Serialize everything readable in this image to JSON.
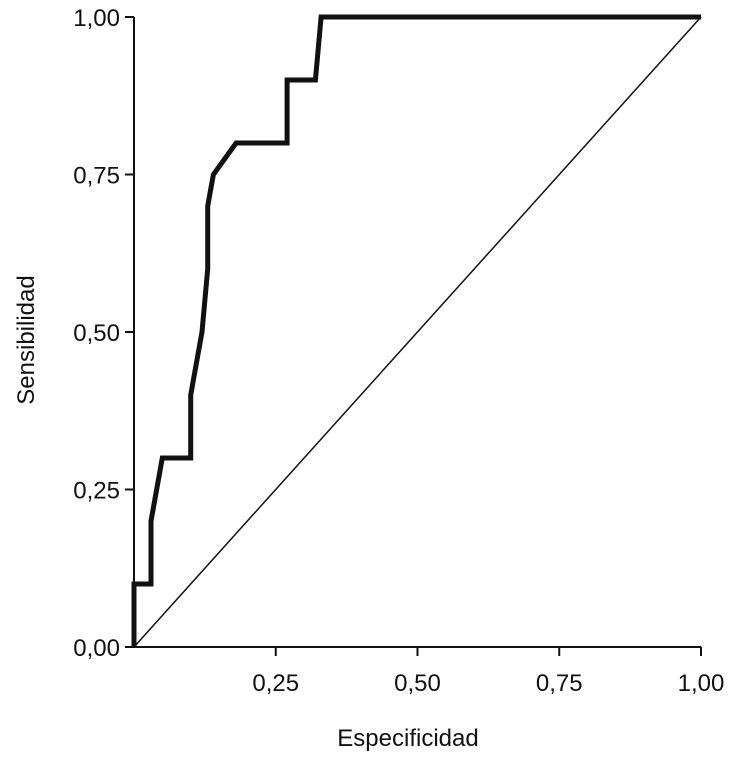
{
  "chart_data": {
    "type": "line",
    "title": "",
    "xlabel": "Especificidad",
    "ylabel": "Sensibilidad",
    "xlim": [
      0,
      1
    ],
    "ylim": [
      0,
      1
    ],
    "grid": false,
    "xticks": [
      {
        "value": 0.25,
        "label": "0,25"
      },
      {
        "value": 0.5,
        "label": "0,50"
      },
      {
        "value": 0.75,
        "label": "0,75"
      },
      {
        "value": 1.0,
        "label": "1,00"
      }
    ],
    "yticks": [
      {
        "value": 0.0,
        "label": "0,00"
      },
      {
        "value": 0.25,
        "label": "0,25"
      },
      {
        "value": 0.5,
        "label": "0,50"
      },
      {
        "value": 0.75,
        "label": "0,75"
      },
      {
        "value": 1.0,
        "label": "1,00"
      }
    ],
    "series": [
      {
        "style": "thick",
        "color": "#111111",
        "x": [
          0.0,
          0.0,
          0.03,
          0.03,
          0.05,
          0.1,
          0.1,
          0.12,
          0.12,
          0.13,
          0.13,
          0.14,
          0.18,
          0.27,
          0.27,
          0.32,
          0.33,
          1.0
        ],
        "y": [
          0.0,
          0.1,
          0.1,
          0.2,
          0.3,
          0.3,
          0.4,
          0.5,
          0.5,
          0.6,
          0.7,
          0.75,
          0.8,
          0.8,
          0.9,
          0.9,
          1.0,
          1.0
        ]
      },
      {
        "style": "thin",
        "color": "#111111",
        "x": [
          0.0,
          1.0
        ],
        "y": [
          0.0,
          1.0
        ]
      }
    ]
  }
}
